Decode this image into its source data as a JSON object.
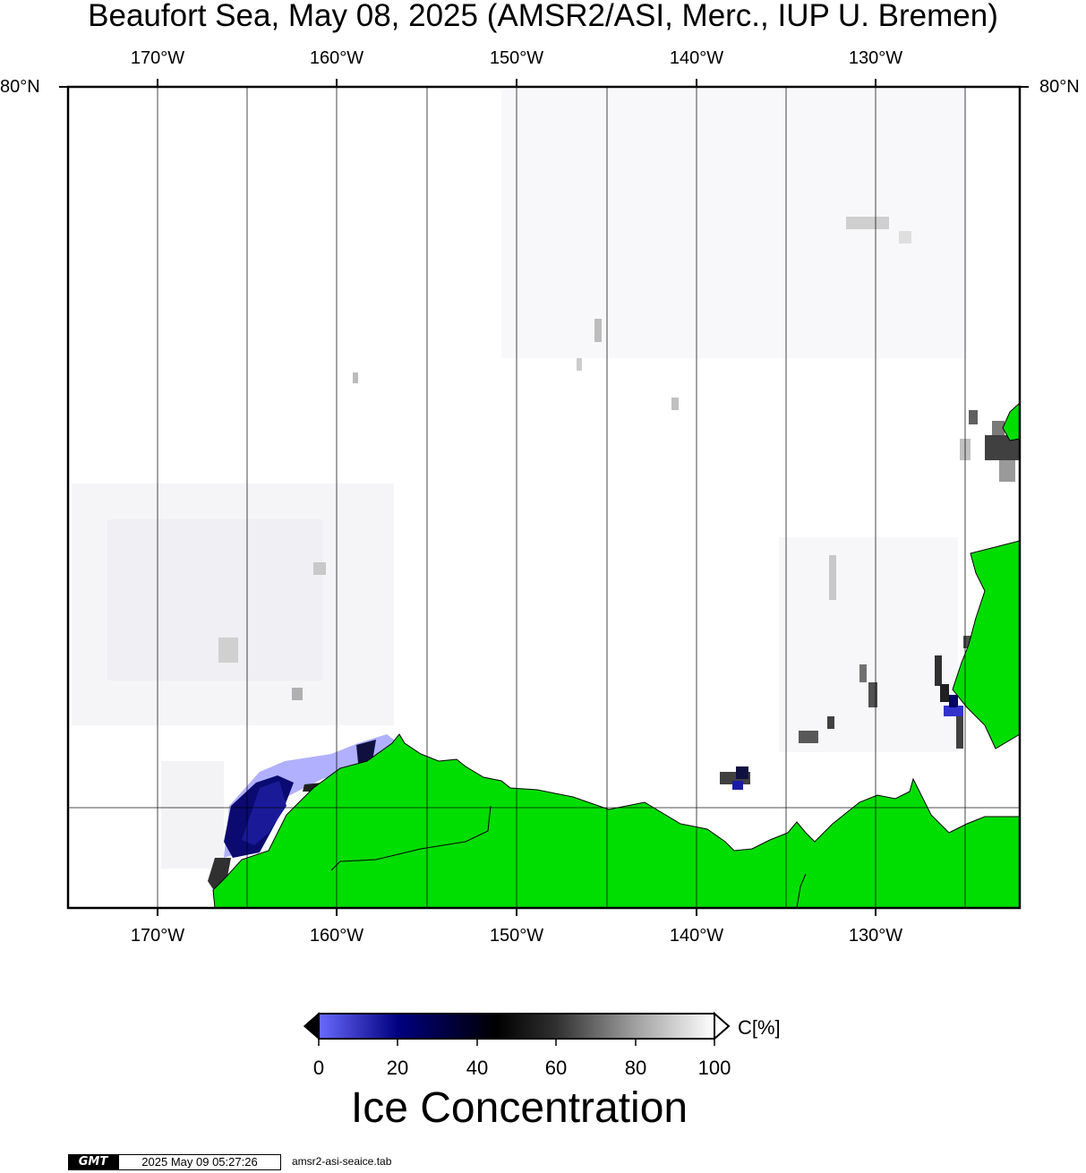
{
  "title": "Beaufort Sea, May 08, 2025 (AMSR2/ASI, Merc., IUP U. Bremen)",
  "lon_labels": [
    "170°W",
    "160°W",
    "150°W",
    "140°W",
    "130°W"
  ],
  "lat_label": "80°N",
  "colorbar": {
    "ticks": [
      "0",
      "20",
      "40",
      "60",
      "80",
      "100"
    ],
    "unit": "C[%]",
    "title": "Ice Concentration",
    "colors": {
      "c0": "#6a6aff",
      "c20": "#000080",
      "c50": "#000000",
      "c100": "#ffffff"
    }
  },
  "colors": {
    "land": "#00dd00",
    "coast": "#000000",
    "grid": "#000000",
    "ice_light": "#b0b0ff",
    "ice_dark": "#0a0a70"
  },
  "footer": {
    "logo": "GMT",
    "timestamp": "2025 May 09 05:27:26",
    "file": "amsr2-asi-seaice.tab"
  }
}
